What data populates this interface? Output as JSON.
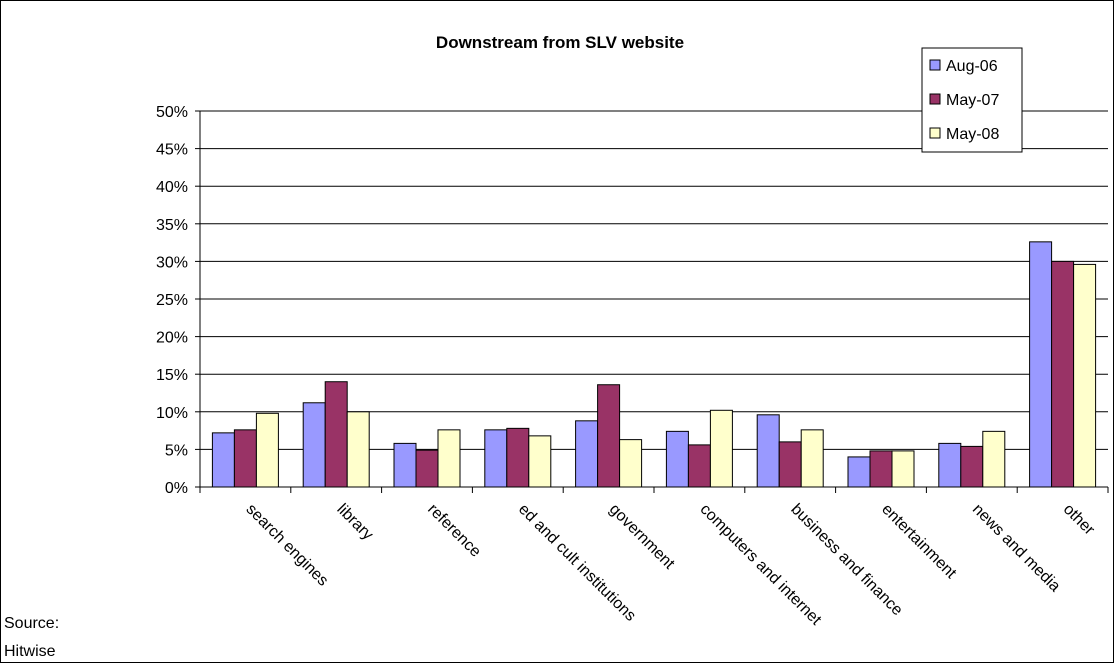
{
  "chart_data": {
    "type": "bar",
    "title": "Downstream from SLV website",
    "categories": [
      "search engines",
      "library",
      "reference",
      "ed and cult institutions",
      "government",
      "computers and internet",
      "business and finance",
      "entertainment",
      "news and media",
      "other"
    ],
    "series": [
      {
        "name": "Aug-06",
        "color": "#9999ff",
        "values": [
          7.2,
          11.2,
          5.8,
          7.6,
          8.8,
          7.4,
          9.6,
          4.0,
          5.8,
          32.6
        ]
      },
      {
        "name": "May-07",
        "color": "#993366",
        "values": [
          7.6,
          14.0,
          4.9,
          7.8,
          13.6,
          5.6,
          6.0,
          4.8,
          5.4,
          30.0
        ]
      },
      {
        "name": "May-08",
        "color": "#ffffcc",
        "values": [
          9.8,
          10.0,
          7.6,
          6.8,
          6.3,
          10.2,
          7.6,
          4.8,
          7.4,
          29.6
        ]
      }
    ],
    "ylim": [
      0,
      50
    ],
    "yticks": [
      {
        "value": 0,
        "label": "0%"
      },
      {
        "value": 5,
        "label": "5%"
      },
      {
        "value": 10,
        "label": "10%"
      },
      {
        "value": 15,
        "label": "15%"
      },
      {
        "value": 20,
        "label": "20%"
      },
      {
        "value": 25,
        "label": "25%"
      },
      {
        "value": 30,
        "label": "30%"
      },
      {
        "value": 35,
        "label": "35%"
      },
      {
        "value": 40,
        "label": "40%"
      },
      {
        "value": 45,
        "label": "45%"
      },
      {
        "value": 50,
        "label": "50%"
      }
    ],
    "grid": true,
    "legend": "top-right",
    "annotations": [
      "Source:",
      "Hitwise"
    ]
  }
}
